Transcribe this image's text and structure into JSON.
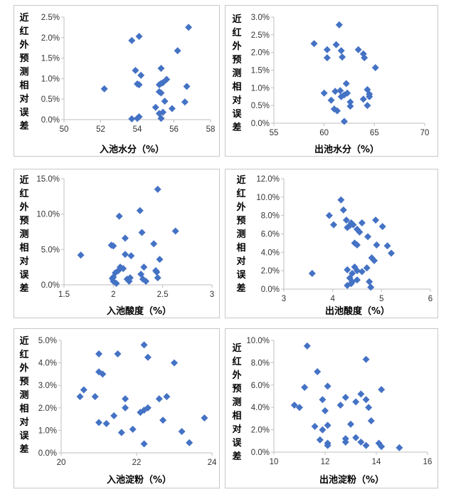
{
  "chart_data": [
    {
      "type": "scatter",
      "ylabel": "近红外预测相对误差",
      "xlabel": "入池水分（%）",
      "xlim": [
        50,
        58
      ],
      "ylim": [
        0,
        0.025
      ],
      "xticks": [
        "50",
        "52",
        "54",
        "56",
        "58"
      ],
      "yticks": [
        "0.0%",
        "0.5%",
        "1.0%",
        "1.5%",
        "2.0%",
        "2.5%"
      ],
      "grid": false,
      "marker_color": "#4472C4",
      "points": [
        [
          52.2,
          0.0075
        ],
        [
          53.7,
          0.0193
        ],
        [
          54.1,
          0.0203
        ],
        [
          53.9,
          0.012
        ],
        [
          54.2,
          0.0108
        ],
        [
          54.0,
          0.0087
        ],
        [
          54.1,
          0.0085
        ],
        [
          53.7,
          0.0002
        ],
        [
          54.0,
          0.0003
        ],
        [
          54.1,
          0.0007
        ],
        [
          55.3,
          0.0125
        ],
        [
          55.6,
          0.0098
        ],
        [
          55.3,
          0.0088
        ],
        [
          55.2,
          0.0085
        ],
        [
          55.4,
          0.009
        ],
        [
          55.2,
          0.0068
        ],
        [
          55.3,
          0.0065
        ],
        [
          55.5,
          0.0045
        ],
        [
          55.0,
          0.003
        ],
        [
          55.2,
          0.0015
        ],
        [
          55.4,
          0.0018
        ],
        [
          55.3,
          0.0003
        ],
        [
          55.9,
          0.0027
        ],
        [
          56.2,
          0.0168
        ],
        [
          56.8,
          0.0225
        ],
        [
          56.7,
          0.0081
        ],
        [
          56.6,
          0.0043
        ]
      ]
    },
    {
      "type": "scatter",
      "ylabel": "近红外预测相对误差",
      "xlabel": "出池水分（%）",
      "xlim": [
        55,
        70
      ],
      "ylim": [
        0,
        0.03
      ],
      "xticks": [
        "55",
        "60",
        "65",
        "70"
      ],
      "yticks": [
        "0.0%",
        "0.5%",
        "1.0%",
        "1.5%",
        "2.0%",
        "2.5%",
        "3.0%"
      ],
      "grid": false,
      "marker_color": "#4472C4",
      "points": [
        [
          59.0,
          0.0225
        ],
        [
          60.3,
          0.0208
        ],
        [
          61.2,
          0.0222
        ],
        [
          61.5,
          0.0278
        ],
        [
          61.7,
          0.0205
        ],
        [
          60.3,
          0.0185
        ],
        [
          61.8,
          0.0187
        ],
        [
          63.4,
          0.0208
        ],
        [
          63.9,
          0.0196
        ],
        [
          64.0,
          0.0185
        ],
        [
          65.1,
          0.0157
        ],
        [
          60.0,
          0.0085
        ],
        [
          60.7,
          0.0065
        ],
        [
          61.0,
          0.004
        ],
        [
          61.3,
          0.0035
        ],
        [
          61.1,
          0.009
        ],
        [
          61.6,
          0.0092
        ],
        [
          61.7,
          0.0075
        ],
        [
          62.0,
          0.008
        ],
        [
          62.2,
          0.0112
        ],
        [
          62.3,
          0.0085
        ],
        [
          62.6,
          0.006
        ],
        [
          62.6,
          0.0048
        ],
        [
          62.0,
          0.0005
        ],
        [
          63.9,
          0.0068
        ],
        [
          64.3,
          0.0095
        ],
        [
          64.5,
          0.0075
        ],
        [
          64.3,
          0.005
        ],
        [
          64.5,
          0.0082
        ]
      ]
    },
    {
      "type": "scatter",
      "ylabel": "近红外预测相对误差",
      "xlabel": "入池酸度（%）",
      "xlim": [
        1.5,
        3
      ],
      "ylim": [
        0,
        0.15
      ],
      "xticks": [
        "1.5",
        "2",
        "2.5",
        "3"
      ],
      "yticks": [
        "0.0%",
        "5.0%",
        "10.0%",
        "15.0%"
      ],
      "grid": false,
      "marker_color": "#4472C4",
      "points": [
        [
          1.67,
          0.042
        ],
        [
          1.98,
          0.056
        ],
        [
          2.0,
          0.055
        ],
        [
          2.06,
          0.097
        ],
        [
          2.12,
          0.066
        ],
        [
          2.12,
          0.043
        ],
        [
          2.18,
          0.041
        ],
        [
          2.27,
          0.105
        ],
        [
          2.29,
          0.074
        ],
        [
          2.45,
          0.135
        ],
        [
          2.41,
          0.058
        ],
        [
          2.47,
          0.036
        ],
        [
          2.63,
          0.076
        ],
        [
          1.99,
          0.009
        ],
        [
          2.0,
          0.011
        ],
        [
          2.02,
          0.017
        ],
        [
          2.05,
          0.02
        ],
        [
          2.07,
          0.025
        ],
        [
          2.1,
          0.023
        ],
        [
          2.03,
          0.002
        ],
        [
          2.14,
          0.008
        ],
        [
          2.16,
          0.005
        ],
        [
          2.17,
          0.01
        ],
        [
          2.28,
          0.015
        ],
        [
          2.31,
          0.025
        ],
        [
          2.3,
          0.008
        ],
        [
          2.33,
          0.005
        ],
        [
          2.43,
          0.02
        ],
        [
          2.44,
          0.018
        ],
        [
          2.45,
          0.01
        ],
        [
          2.0,
          0.005
        ]
      ]
    },
    {
      "type": "scatter",
      "ylabel": "近红外预测相对误差",
      "xlabel": "出池酸度（%）",
      "xlim": [
        3,
        6
      ],
      "ylim": [
        0,
        0.12
      ],
      "xticks": [
        "3",
        "4",
        "5",
        "6"
      ],
      "yticks": [
        "0.0%",
        "2.0%",
        "4.0%",
        "6.0%",
        "8.0%",
        "10.0%",
        "12.0%"
      ],
      "grid": false,
      "marker_color": "#4472C4",
      "points": [
        [
          3.58,
          0.017
        ],
        [
          3.93,
          0.08
        ],
        [
          4.02,
          0.07
        ],
        [
          4.17,
          0.097
        ],
        [
          4.22,
          0.086
        ],
        [
          4.28,
          0.075
        ],
        [
          4.3,
          0.067
        ],
        [
          4.35,
          0.069
        ],
        [
          4.38,
          0.072
        ],
        [
          4.42,
          0.07
        ],
        [
          4.5,
          0.065
        ],
        [
          4.55,
          0.062
        ],
        [
          4.6,
          0.072
        ],
        [
          4.72,
          0.057
        ],
        [
          4.88,
          0.075
        ],
        [
          5.02,
          0.068
        ],
        [
          5.12,
          0.047
        ],
        [
          5.2,
          0.039
        ],
        [
          4.45,
          0.05
        ],
        [
          4.5,
          0.048
        ],
        [
          4.9,
          0.048
        ],
        [
          4.8,
          0.034
        ],
        [
          4.85,
          0.031
        ],
        [
          4.3,
          0.021
        ],
        [
          4.4,
          0.017
        ],
        [
          4.45,
          0.024
        ],
        [
          4.5,
          0.02
        ],
        [
          4.6,
          0.019
        ],
        [
          4.7,
          0.023
        ],
        [
          4.35,
          0.012
        ],
        [
          4.4,
          0.008
        ],
        [
          4.5,
          0.01
        ],
        [
          4.3,
          0.004
        ],
        [
          4.38,
          0.006
        ],
        [
          4.75,
          0.008
        ],
        [
          4.78,
          0.002
        ]
      ]
    },
    {
      "type": "scatter",
      "ylabel": "近红外预测相对误差",
      "xlabel": "入池淀粉（%）",
      "xlim": [
        20,
        24
      ],
      "ylim": [
        0,
        0.05
      ],
      "xticks": [
        "20",
        "22",
        "24"
      ],
      "yticks": [
        "0.0%",
        "1.0%",
        "2.0%",
        "3.0%",
        "4.0%",
        "5.0%"
      ],
      "grid": false,
      "marker_color": "#4472C4",
      "points": [
        [
          20.5,
          0.025
        ],
        [
          20.6,
          0.028
        ],
        [
          20.9,
          0.025
        ],
        [
          21.0,
          0.044
        ],
        [
          21.0,
          0.036
        ],
        [
          21.1,
          0.035
        ],
        [
          21.0,
          0.0135
        ],
        [
          21.2,
          0.013
        ],
        [
          21.4,
          0.0165
        ],
        [
          21.5,
          0.044
        ],
        [
          21.6,
          0.009
        ],
        [
          21.7,
          0.024
        ],
        [
          21.7,
          0.02
        ],
        [
          21.9,
          0.0105
        ],
        [
          22.1,
          0.018
        ],
        [
          22.2,
          0.019
        ],
        [
          22.3,
          0.02
        ],
        [
          22.2,
          0.048
        ],
        [
          22.3,
          0.0425
        ],
        [
          22.2,
          0.004
        ],
        [
          22.6,
          0.024
        ],
        [
          22.7,
          0.0145
        ],
        [
          22.8,
          0.025
        ],
        [
          23.0,
          0.04
        ],
        [
          23.2,
          0.0095
        ],
        [
          23.4,
          0.0045
        ],
        [
          23.8,
          0.0155
        ]
      ]
    },
    {
      "type": "scatter",
      "ylabel": "近红外预测相对误差",
      "xlabel": "出池淀粉（%）",
      "xlim": [
        10,
        16
      ],
      "ylim": [
        0,
        0.1
      ],
      "xticks": [
        "10",
        "12",
        "14",
        "16"
      ],
      "yticks": [
        "0.0%",
        "2.0%",
        "4.0%",
        "6.0%",
        "8.0%",
        "10.0%"
      ],
      "grid": false,
      "marker_color": "#4472C4",
      "points": [
        [
          10.8,
          0.042
        ],
        [
          11.0,
          0.04
        ],
        [
          11.2,
          0.058
        ],
        [
          11.3,
          0.095
        ],
        [
          11.7,
          0.072
        ],
        [
          11.9,
          0.047
        ],
        [
          12.0,
          0.037
        ],
        [
          12.1,
          0.059
        ],
        [
          11.6,
          0.023
        ],
        [
          11.9,
          0.02
        ],
        [
          12.1,
          0.024
        ],
        [
          11.8,
          0.011
        ],
        [
          12.1,
          0.008
        ],
        [
          12.1,
          0.006
        ],
        [
          12.6,
          0.042
        ],
        [
          12.8,
          0.049
        ],
        [
          13.0,
          0.025
        ],
        [
          12.8,
          0.012
        ],
        [
          12.8,
          0.009
        ],
        [
          13.2,
          0.013
        ],
        [
          13.2,
          0.045
        ],
        [
          13.4,
          0.052
        ],
        [
          13.6,
          0.047
        ],
        [
          13.7,
          0.04
        ],
        [
          13.8,
          0.028
        ],
        [
          13.6,
          0.083
        ],
        [
          13.4,
          0.009
        ],
        [
          13.6,
          0.006
        ],
        [
          14.1,
          0.008
        ],
        [
          14.2,
          0.056
        ],
        [
          14.2,
          0.005
        ],
        [
          14.9,
          0.004
        ]
      ]
    }
  ]
}
